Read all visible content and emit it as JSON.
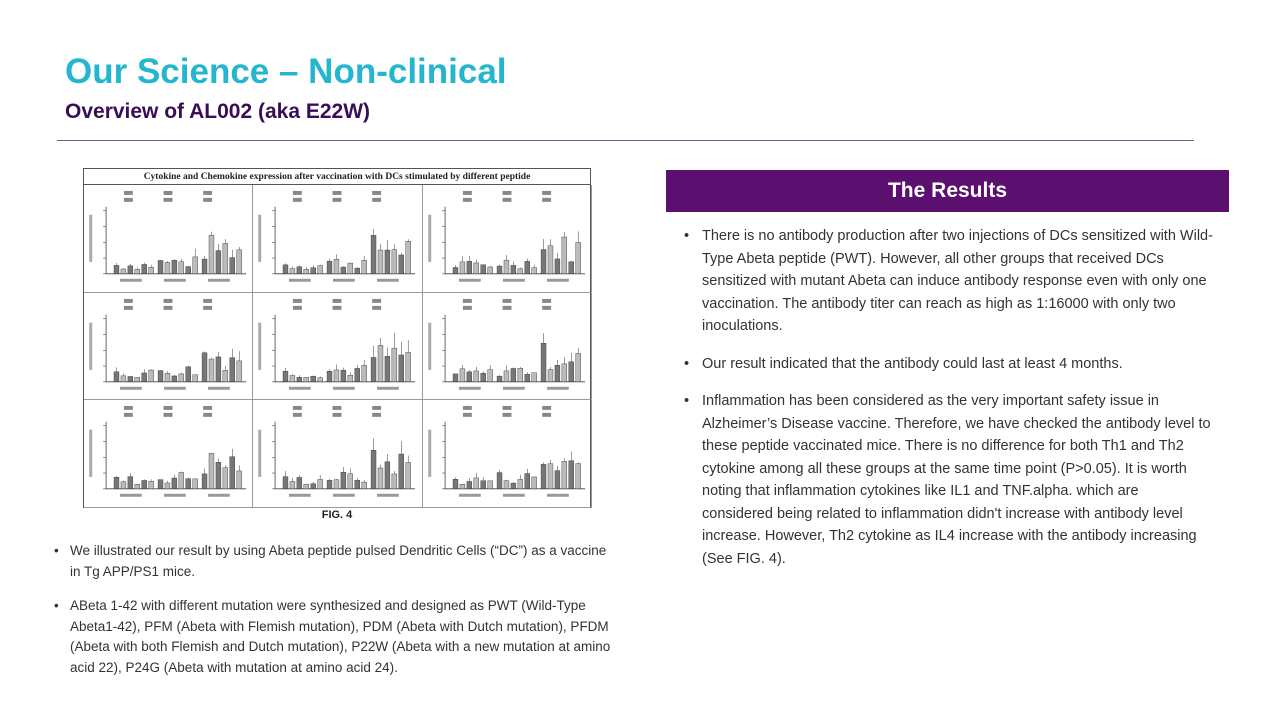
{
  "header": {
    "title": "Our Science – Non-clinical",
    "subtitle": "Overview of AL002 (aka E22W)"
  },
  "figure": {
    "header": "Cytokine and Chemokine expression after vaccination with DCs stimulated by different peptide",
    "caption": "FIG. 4"
  },
  "results": {
    "header": "The Results",
    "bullets": [
      "There is no antibody production after two injections of DCs sensitized with Wild-Type Abeta peptide (PWT). However, all other groups that received DCs sensitized with mutant Abeta can induce antibody response even with only one vaccination. The antibody titer can reach as high as 1:16000 with only two inoculations.",
      "Our result indicated that the antibody could last at least 4 months.",
      "Inflammation has been considered as the very important safety issue in Alzheimer’s Disease vaccine. Therefore, we have checked the antibody level to these peptide vaccinated mice. There is no difference for both Th1 and Th2 cytokine among all these groups at the same time point (P>0.05). It is worth noting that inflammation cytokines like IL1 and TNF.alpha. which are considered being related to inflammation didn't increase with antibody level increase. However, Th2 cytokine as IL4 increase with the antibody increasing (See FIG. 4)."
    ]
  },
  "left_bullets": [
    "We illustrated our result by using Abeta peptide pulsed Dendritic Cells (“DC”) as a vaccine in Tg APP/PS1 mice.",
    "ABeta 1-42 with different mutation were synthesized and designed as PWT (Wild-Type Abeta1-42), PFM (Abeta with Flemish mutation), PDM (Abeta with Dutch mutation), PFDM (Abeta with both Flemish and Dutch mutation), P22W (Abeta with a new mutation at amino acid 22), P24G (Abeta with mutation at amino acid 24)."
  ],
  "colors": {
    "title": "#25b6cf",
    "subtitle": "#3a0e57",
    "results_header_bg": "#5b0f6e",
    "rule": "#7a5a90"
  }
}
